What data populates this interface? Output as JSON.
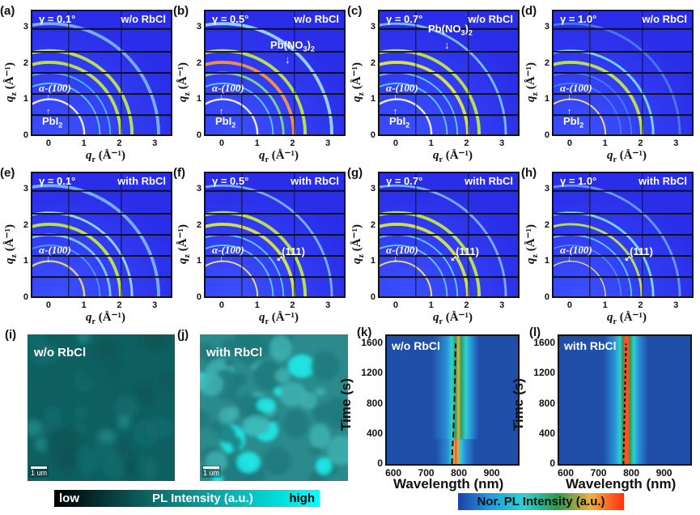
{
  "figure": {
    "giwaxs_panels": [
      {
        "id": "a",
        "label": "(a)",
        "gamma": "γ = 0.1°",
        "sample": "w/o RbCl",
        "annotations": [
          "α-(100)",
          "PbI2"
        ]
      },
      {
        "id": "b",
        "label": "(b)",
        "gamma": "γ = 0.5°",
        "sample": "w/o RbCl",
        "annotations": [
          "α-(100)",
          "PbI2",
          "Pb(NO3)2"
        ]
      },
      {
        "id": "c",
        "label": "(c)",
        "gamma": "γ = 0.7°",
        "sample": "w/o RbCl",
        "annotations": [
          "α-(100)",
          "PbI2",
          "Pb(NO3)2"
        ]
      },
      {
        "id": "d",
        "label": "(d)",
        "gamma": "γ = 1.0°",
        "sample": "w/o RbCl",
        "annotations": [
          "α-(100)",
          "PbI2"
        ]
      },
      {
        "id": "e",
        "label": "(e)",
        "gamma": "γ = 0.1°",
        "sample": "with RbCl",
        "annotations": [
          "α-(100)"
        ]
      },
      {
        "id": "f",
        "label": "(f)",
        "gamma": "γ = 0.5°",
        "sample": "with RbCl",
        "annotations": [
          "α-(100)",
          "(111)"
        ]
      },
      {
        "id": "g",
        "label": "(g)",
        "gamma": "γ = 0.7°",
        "sample": "with RbCl",
        "annotations": [
          "α-(100)",
          "(111)"
        ]
      },
      {
        "id": "h",
        "label": "(h)",
        "gamma": "γ = 1.0°",
        "sample": "with RbCl",
        "annotations": [
          "α-(100)",
          "(111)"
        ]
      }
    ],
    "giwaxs_axes": {
      "xlabel_var": "q",
      "xlabel_sub": "r",
      "xlabel_unit": "(Å⁻¹)",
      "ylabel_var": "q",
      "ylabel_sub": "z",
      "ylabel_unit": "(Å⁻¹)",
      "xticks": [
        "0",
        "1",
        "2",
        "3"
      ],
      "yticks": [
        "0",
        "1",
        "2",
        "3"
      ],
      "xlim": [
        -0.5,
        3.5
      ],
      "ylim": [
        0,
        3.5
      ]
    },
    "labels": {
      "alpha100": "α-(100)",
      "pbi2_main": "PbI",
      "pbi2_sub": "2",
      "pbno3_main": "Pb(NO",
      "pbno3_sub1": "3",
      "pbno3_close": ")",
      "pbno3_sub2": "2",
      "hkl111": "(111)"
    },
    "pl_maps": [
      {
        "id": "i",
        "label": "(i)",
        "sample": "w/o RbCl",
        "scale": "1 um",
        "brightness": "low"
      },
      {
        "id": "j",
        "label": "(j)",
        "sample": "with RbCl",
        "scale": "1 um",
        "brightness": "high"
      }
    ],
    "pl_colorbar": {
      "low": "low",
      "title": "PL Intensity (a.u.)",
      "high": "high",
      "colors": [
        "#000000",
        "#0e7f7f",
        "#00ffff"
      ]
    },
    "heatmaps": [
      {
        "id": "k",
        "label": "(k)",
        "sample": "w/o RbCl"
      },
      {
        "id": "l",
        "label": "(l)",
        "sample": "with RbCl"
      }
    ],
    "norpl_colorbar": {
      "title": "Nor. PL Intensity (a.u.)",
      "colors": [
        "#1f3fa8",
        "#20a0e0",
        "#2fd0d0",
        "#2a9a4a",
        "#f0b040",
        "#ff3010"
      ]
    }
  },
  "chart_data": [
    {
      "type": "heatmap",
      "title": "(k) w/o RbCl",
      "xlabel": "Wavelength (nm)",
      "ylabel": "Time (s)",
      "xlim": [
        580,
        980
      ],
      "ylim": [
        0,
        1700
      ],
      "xticks": [
        600,
        700,
        800,
        900
      ],
      "yticks": [
        0,
        400,
        800,
        1200,
        1600
      ],
      "peak_trace": {
        "time": [
          0,
          200,
          400,
          800,
          1200,
          1600
        ],
        "wavelength": [
          779,
          780,
          783,
          786,
          788,
          790
        ]
      },
      "notes": "Strong emission near 780 nm below ~330 s, weaker/broader emission shifting to ~790 nm at later times"
    },
    {
      "type": "heatmap",
      "title": "(l) with RbCl",
      "xlabel": "Wavelength (nm)",
      "ylabel": "Time (s)",
      "xlim": [
        580,
        980
      ],
      "ylim": [
        0,
        1700
      ],
      "xticks": [
        600,
        700,
        800,
        900
      ],
      "yticks": [
        0,
        400,
        800,
        1200,
        1600
      ],
      "peak_trace": {
        "time": [
          0,
          400,
          800,
          1200,
          1600
        ],
        "wavelength": [
          776,
          778,
          780,
          782,
          784
        ]
      },
      "notes": "Stable strong emission centered ~780 nm throughout"
    }
  ]
}
